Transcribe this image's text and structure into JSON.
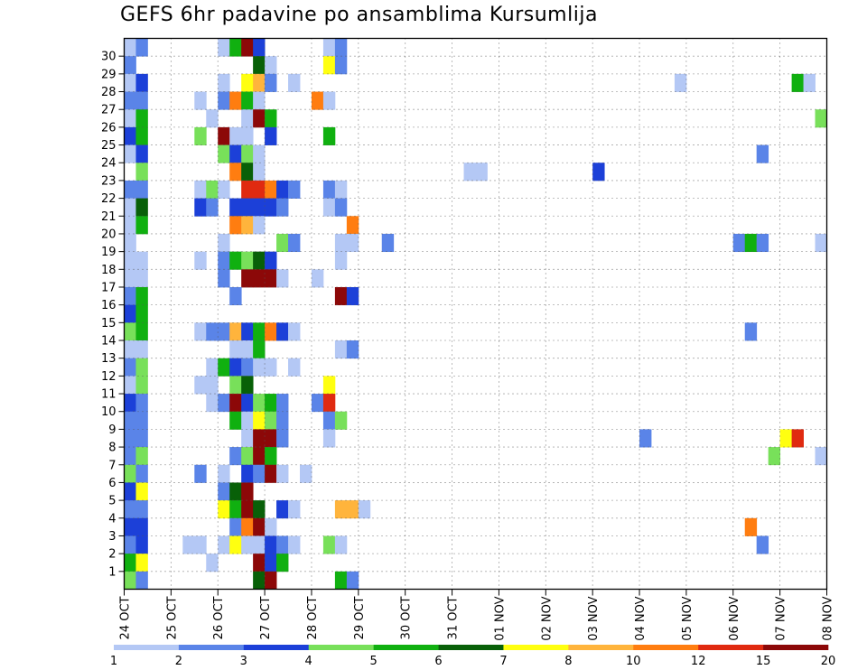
{
  "chart_data": {
    "type": "heatmap",
    "title": "GEFS 6hr padavine po ansamblima Kursumlija",
    "y_ticks": [
      "1",
      "2",
      "3",
      "4",
      "5",
      "6",
      "7",
      "8",
      "9",
      "10",
      "11",
      "12",
      "13",
      "14",
      "15",
      "16",
      "17",
      "18",
      "19",
      "20",
      "21",
      "22",
      "23",
      "24",
      "25",
      "26",
      "27",
      "28",
      "29",
      "30"
    ],
    "x_ticks": [
      "24 OCT",
      "25 OCT",
      "26 OCT",
      "27 OCT",
      "28 OCT",
      "29 OCT",
      "30 OCT",
      "31 OCT",
      "01 NOV",
      "02 NOV",
      "03 NOV",
      "04 NOV",
      "05 NOV",
      "06 NOV",
      "07 NOV",
      "08 NOV"
    ],
    "colorbar": {
      "labels": [
        "1",
        "2",
        "3",
        "4",
        "5",
        "6",
        "7",
        "8",
        "10",
        "12",
        "15",
        "20"
      ],
      "colors": [
        "#b4c8f5",
        "#5a84e8",
        "#1c40d8",
        "#78e05a",
        "#10b010",
        "#086008",
        "#ffff10",
        "#ffb43c",
        "#ff7d10",
        "#e02a10",
        "#8c0808"
      ]
    },
    "cells": [
      [
        0,
        30,
        0
      ],
      [
        1,
        30,
        1
      ],
      [
        8,
        30,
        0
      ],
      [
        9,
        30,
        4
      ],
      [
        10,
        30,
        10
      ],
      [
        11,
        30,
        2
      ],
      [
        17,
        30,
        0
      ],
      [
        18,
        30,
        1
      ],
      [
        0,
        29,
        1
      ],
      [
        11,
        29,
        5
      ],
      [
        12,
        29,
        0
      ],
      [
        17,
        29,
        6
      ],
      [
        18,
        29,
        1
      ],
      [
        0,
        28,
        0
      ],
      [
        1,
        28,
        2
      ],
      [
        8,
        28,
        0
      ],
      [
        10,
        28,
        6
      ],
      [
        11,
        28,
        7
      ],
      [
        12,
        28,
        1
      ],
      [
        14,
        28,
        0
      ],
      [
        47,
        28,
        0
      ],
      [
        57,
        28,
        4
      ],
      [
        58,
        28,
        0
      ],
      [
        0,
        27,
        1
      ],
      [
        1,
        27,
        1
      ],
      [
        6,
        27,
        0
      ],
      [
        8,
        27,
        1
      ],
      [
        9,
        27,
        8
      ],
      [
        10,
        27,
        4
      ],
      [
        11,
        27,
        0
      ],
      [
        16,
        27,
        8
      ],
      [
        17,
        27,
        0
      ],
      [
        0,
        26,
        0
      ],
      [
        1,
        26,
        4
      ],
      [
        7,
        26,
        0
      ],
      [
        10,
        26,
        0
      ],
      [
        11,
        26,
        10
      ],
      [
        12,
        26,
        4
      ],
      [
        59,
        26,
        3
      ],
      [
        0,
        25,
        2
      ],
      [
        1,
        25,
        4
      ],
      [
        6,
        25,
        3
      ],
      [
        8,
        25,
        10
      ],
      [
        9,
        25,
        0
      ],
      [
        10,
        25,
        0
      ],
      [
        12,
        25,
        2
      ],
      [
        17,
        25,
        4
      ],
      [
        0,
        24,
        0
      ],
      [
        1,
        24,
        2
      ],
      [
        8,
        24,
        3
      ],
      [
        9,
        24,
        2
      ],
      [
        10,
        24,
        3
      ],
      [
        11,
        24,
        0
      ],
      [
        54,
        24,
        1
      ],
      [
        1,
        23,
        3
      ],
      [
        9,
        23,
        8
      ],
      [
        10,
        23,
        5
      ],
      [
        11,
        23,
        0
      ],
      [
        29,
        23,
        0
      ],
      [
        30,
        23,
        0
      ],
      [
        40,
        23,
        2
      ],
      [
        0,
        22,
        1
      ],
      [
        1,
        22,
        1
      ],
      [
        6,
        22,
        0
      ],
      [
        7,
        22,
        3
      ],
      [
        8,
        22,
        0
      ],
      [
        10,
        22,
        9
      ],
      [
        11,
        22,
        9
      ],
      [
        12,
        22,
        8
      ],
      [
        13,
        22,
        2
      ],
      [
        14,
        22,
        1
      ],
      [
        17,
        22,
        1
      ],
      [
        18,
        22,
        0
      ],
      [
        0,
        21,
        0
      ],
      [
        1,
        21,
        5
      ],
      [
        6,
        21,
        2
      ],
      [
        7,
        21,
        1
      ],
      [
        9,
        21,
        2
      ],
      [
        10,
        21,
        2
      ],
      [
        11,
        21,
        2
      ],
      [
        12,
        21,
        2
      ],
      [
        13,
        21,
        1
      ],
      [
        17,
        21,
        0
      ],
      [
        18,
        21,
        1
      ],
      [
        0,
        20,
        0
      ],
      [
        1,
        20,
        4
      ],
      [
        9,
        20,
        8
      ],
      [
        10,
        20,
        7
      ],
      [
        11,
        20,
        0
      ],
      [
        19,
        20,
        8
      ],
      [
        0,
        19,
        0
      ],
      [
        8,
        19,
        0
      ],
      [
        13,
        19,
        3
      ],
      [
        14,
        19,
        1
      ],
      [
        18,
        19,
        0
      ],
      [
        19,
        19,
        0
      ],
      [
        22,
        19,
        1
      ],
      [
        52,
        19,
        1
      ],
      [
        53,
        19,
        4
      ],
      [
        54,
        19,
        1
      ],
      [
        59,
        19,
        0
      ],
      [
        0,
        18,
        0
      ],
      [
        1,
        18,
        0
      ],
      [
        6,
        18,
        0
      ],
      [
        8,
        18,
        1
      ],
      [
        9,
        18,
        4
      ],
      [
        10,
        18,
        3
      ],
      [
        11,
        18,
        5
      ],
      [
        12,
        18,
        2
      ],
      [
        18,
        18,
        0
      ],
      [
        0,
        17,
        0
      ],
      [
        1,
        17,
        0
      ],
      [
        8,
        17,
        1
      ],
      [
        10,
        17,
        10
      ],
      [
        11,
        17,
        10
      ],
      [
        12,
        17,
        10
      ],
      [
        13,
        17,
        0
      ],
      [
        16,
        17,
        0
      ],
      [
        0,
        16,
        1
      ],
      [
        1,
        16,
        4
      ],
      [
        9,
        16,
        1
      ],
      [
        18,
        16,
        10
      ],
      [
        19,
        16,
        2
      ],
      [
        0,
        15,
        2
      ],
      [
        1,
        15,
        4
      ],
      [
        0,
        14,
        3
      ],
      [
        1,
        14,
        4
      ],
      [
        6,
        14,
        0
      ],
      [
        7,
        14,
        1
      ],
      [
        8,
        14,
        1
      ],
      [
        9,
        14,
        7
      ],
      [
        10,
        14,
        2
      ],
      [
        11,
        14,
        4
      ],
      [
        12,
        14,
        8
      ],
      [
        13,
        14,
        2
      ],
      [
        14,
        14,
        0
      ],
      [
        53,
        14,
        1
      ],
      [
        0,
        13,
        0
      ],
      [
        1,
        13,
        0
      ],
      [
        9,
        13,
        0
      ],
      [
        10,
        13,
        0
      ],
      [
        11,
        13,
        4
      ],
      [
        18,
        13,
        0
      ],
      [
        19,
        13,
        1
      ],
      [
        0,
        12,
        1
      ],
      [
        1,
        12,
        3
      ],
      [
        7,
        12,
        0
      ],
      [
        8,
        12,
        4
      ],
      [
        9,
        12,
        2
      ],
      [
        10,
        12,
        1
      ],
      [
        11,
        12,
        0
      ],
      [
        12,
        12,
        0
      ],
      [
        14,
        12,
        0
      ],
      [
        0,
        11,
        0
      ],
      [
        1,
        11,
        3
      ],
      [
        6,
        11,
        0
      ],
      [
        7,
        11,
        0
      ],
      [
        9,
        11,
        3
      ],
      [
        10,
        11,
        5
      ],
      [
        17,
        11,
        6
      ],
      [
        0,
        10,
        2
      ],
      [
        1,
        10,
        1
      ],
      [
        7,
        10,
        0
      ],
      [
        8,
        10,
        1
      ],
      [
        9,
        10,
        10
      ],
      [
        10,
        10,
        2
      ],
      [
        11,
        10,
        3
      ],
      [
        12,
        10,
        4
      ],
      [
        13,
        10,
        1
      ],
      [
        16,
        10,
        1
      ],
      [
        17,
        10,
        9
      ],
      [
        0,
        9,
        1
      ],
      [
        1,
        9,
        1
      ],
      [
        9,
        9,
        4
      ],
      [
        10,
        9,
        0
      ],
      [
        11,
        9,
        6
      ],
      [
        12,
        9,
        3
      ],
      [
        13,
        9,
        1
      ],
      [
        17,
        9,
        1
      ],
      [
        18,
        9,
        3
      ],
      [
        0,
        8,
        1
      ],
      [
        1,
        8,
        1
      ],
      [
        10,
        8,
        0
      ],
      [
        11,
        8,
        10
      ],
      [
        12,
        8,
        10
      ],
      [
        13,
        8,
        1
      ],
      [
        17,
        8,
        0
      ],
      [
        44,
        8,
        1
      ],
      [
        56,
        8,
        6
      ],
      [
        57,
        8,
        9
      ],
      [
        0,
        7,
        1
      ],
      [
        1,
        7,
        3
      ],
      [
        9,
        7,
        1
      ],
      [
        10,
        7,
        3
      ],
      [
        11,
        7,
        10
      ],
      [
        12,
        7,
        4
      ],
      [
        55,
        7,
        3
      ],
      [
        59,
        7,
        0
      ],
      [
        0,
        6,
        3
      ],
      [
        1,
        6,
        1
      ],
      [
        6,
        6,
        1
      ],
      [
        8,
        6,
        0
      ],
      [
        10,
        6,
        2
      ],
      [
        11,
        6,
        1
      ],
      [
        12,
        6,
        10
      ],
      [
        13,
        6,
        0
      ],
      [
        15,
        6,
        0
      ],
      [
        0,
        5,
        2
      ],
      [
        1,
        5,
        6
      ],
      [
        8,
        5,
        1
      ],
      [
        9,
        5,
        5
      ],
      [
        10,
        5,
        10
      ],
      [
        0,
        4,
        1
      ],
      [
        1,
        4,
        1
      ],
      [
        8,
        4,
        6
      ],
      [
        9,
        4,
        4
      ],
      [
        10,
        4,
        10
      ],
      [
        11,
        4,
        5
      ],
      [
        13,
        4,
        2
      ],
      [
        14,
        4,
        0
      ],
      [
        18,
        4,
        7
      ],
      [
        19,
        4,
        7
      ],
      [
        20,
        4,
        0
      ],
      [
        0,
        3,
        2
      ],
      [
        1,
        3,
        2
      ],
      [
        9,
        3,
        1
      ],
      [
        10,
        3,
        8
      ],
      [
        11,
        3,
        10
      ],
      [
        12,
        3,
        0
      ],
      [
        53,
        3,
        8
      ],
      [
        0,
        2,
        1
      ],
      [
        1,
        2,
        2
      ],
      [
        5,
        2,
        0
      ],
      [
        6,
        2,
        0
      ],
      [
        8,
        2,
        0
      ],
      [
        9,
        2,
        6
      ],
      [
        10,
        2,
        0
      ],
      [
        11,
        2,
        0
      ],
      [
        12,
        2,
        2
      ],
      [
        13,
        2,
        1
      ],
      [
        14,
        2,
        0
      ],
      [
        17,
        2,
        3
      ],
      [
        18,
        2,
        0
      ],
      [
        54,
        2,
        1
      ],
      [
        0,
        1,
        4
      ],
      [
        1,
        1,
        6
      ],
      [
        7,
        1,
        0
      ],
      [
        11,
        1,
        10
      ],
      [
        12,
        1,
        2
      ],
      [
        13,
        1,
        4
      ],
      [
        0,
        0,
        3
      ],
      [
        1,
        0,
        1
      ],
      [
        11,
        0,
        5
      ],
      [
        12,
        0,
        10
      ],
      [
        18,
        0,
        4
      ],
      [
        19,
        0,
        1
      ]
    ]
  }
}
